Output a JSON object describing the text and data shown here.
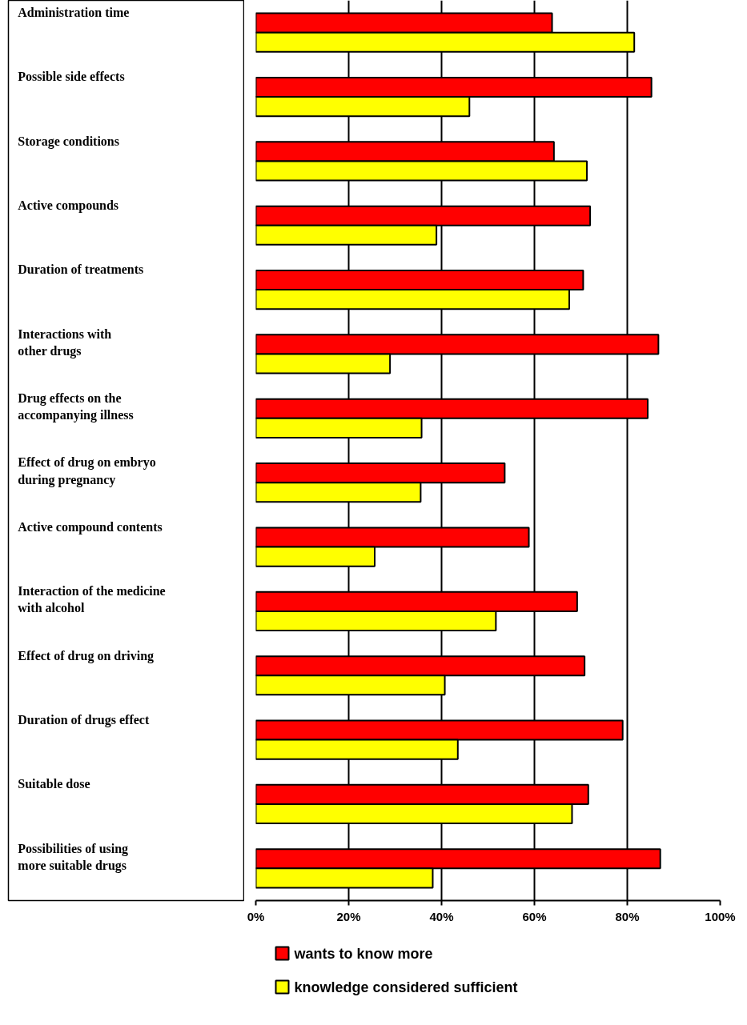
{
  "chart_data": {
    "type": "bar",
    "orientation": "horizontal",
    "categories": [
      "Administration time",
      "Possible side effects",
      "Storage conditions",
      "Active compounds",
      "Duration of treatments",
      "Interactions with\nother drugs",
      "Drug effects on the\naccompanying illness",
      "Effect of drug on embryo\nduring pregnancy",
      "Active compound contents",
      "Interaction of the medicine\nwith alcohol",
      "Effect of drug on driving",
      "Duration of drugs effect",
      "Suitable dose",
      "Possibilities of using\nmore suitable drugs"
    ],
    "series": [
      {
        "name": "wants to know more",
        "color": "#ff0000",
        "values": [
          63.8,
          85.2,
          64.2,
          72.0,
          70.5,
          86.7,
          84.4,
          53.6,
          58.8,
          69.2,
          70.8,
          79.0,
          71.6,
          87.1
        ]
      },
      {
        "name": "knowledge considered sufficient",
        "color": "#ffff00",
        "values": [
          81.5,
          46.0,
          71.3,
          38.9,
          67.5,
          28.9,
          35.7,
          35.5,
          25.6,
          51.7,
          40.7,
          43.5,
          68.1,
          38.1
        ]
      }
    ],
    "xlim": [
      0,
      100
    ],
    "xticks": [
      {
        "value": 0,
        "label": "0%"
      },
      {
        "value": 20,
        "label": "20%"
      },
      {
        "value": 40,
        "label": "40%"
      },
      {
        "value": 60,
        "label": "60%"
      },
      {
        "value": 80,
        "label": "80%"
      },
      {
        "value": 100,
        "label": "100%"
      }
    ],
    "grid": "x",
    "legend": "bottom"
  }
}
